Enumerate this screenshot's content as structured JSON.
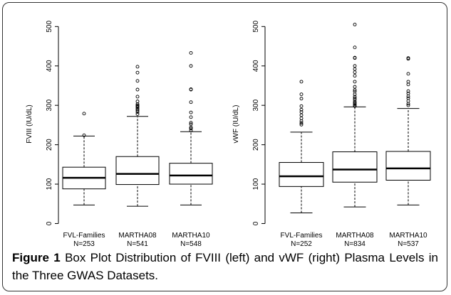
{
  "chart_data": [
    {
      "type": "box",
      "ylabel": "FVIII (IU/dL)",
      "ylim": [
        -10,
        515
      ],
      "yticks": [
        0,
        100,
        200,
        300,
        400,
        500
      ],
      "categories": [
        "FVL-Families",
        "MARTHA08",
        "MARTHA10"
      ],
      "sample_sizes": [
        "N=253",
        "N=541",
        "N=548"
      ],
      "boxes": [
        {
          "whisker_low": 47,
          "q1": 88,
          "median": 116,
          "q3": 143,
          "whisker_high": 222,
          "outliers": [
            224,
            279
          ]
        },
        {
          "whisker_low": 44,
          "q1": 99,
          "median": 126,
          "q3": 170,
          "whisker_high": 272,
          "outliers": [
            278,
            283,
            287,
            290,
            293,
            296,
            298,
            300,
            303,
            310,
            322,
            340,
            362,
            383,
            398
          ]
        },
        {
          "whisker_low": 47,
          "q1": 100,
          "median": 122,
          "q3": 153,
          "whisker_high": 233,
          "outliers": [
            236,
            241,
            244,
            252,
            256,
            270,
            282,
            308,
            340,
            341,
            400,
            433
          ]
        }
      ]
    },
    {
      "type": "box",
      "ylabel": "vWF (IU/dL)",
      "ylim": [
        -10,
        515
      ],
      "yticks": [
        0,
        100,
        200,
        300,
        400,
        500
      ],
      "categories": [
        "FVL-Families",
        "MARTHA08",
        "MARTHA10"
      ],
      "sample_sizes": [
        "N=252",
        "N=834",
        "N=537"
      ],
      "boxes": [
        {
          "whisker_low": 27,
          "q1": 94,
          "median": 120,
          "q3": 155,
          "whisker_high": 232,
          "outliers": [
            251,
            255,
            260,
            267,
            275,
            283,
            289,
            298,
            317,
            328,
            360
          ]
        },
        {
          "whisker_low": 42,
          "q1": 105,
          "median": 137,
          "q3": 182,
          "whisker_high": 296,
          "outliers": [
            298,
            300,
            303,
            306,
            309,
            314,
            318,
            322,
            328,
            335,
            339,
            347,
            360,
            375,
            384,
            392,
            400,
            420,
            421,
            447,
            505
          ]
        },
        {
          "whisker_low": 47,
          "q1": 110,
          "median": 140,
          "q3": 183,
          "whisker_high": 292,
          "outliers": [
            300,
            304,
            311,
            318,
            323,
            330,
            336,
            353,
            360,
            380,
            418,
            420
          ]
        }
      ]
    }
  ],
  "caption": {
    "label": "Figure 1",
    "text": "Box Plot Distribution of FVIII (left) and vWF (right) Plasma Levels in the Three GWAS Datasets."
  }
}
